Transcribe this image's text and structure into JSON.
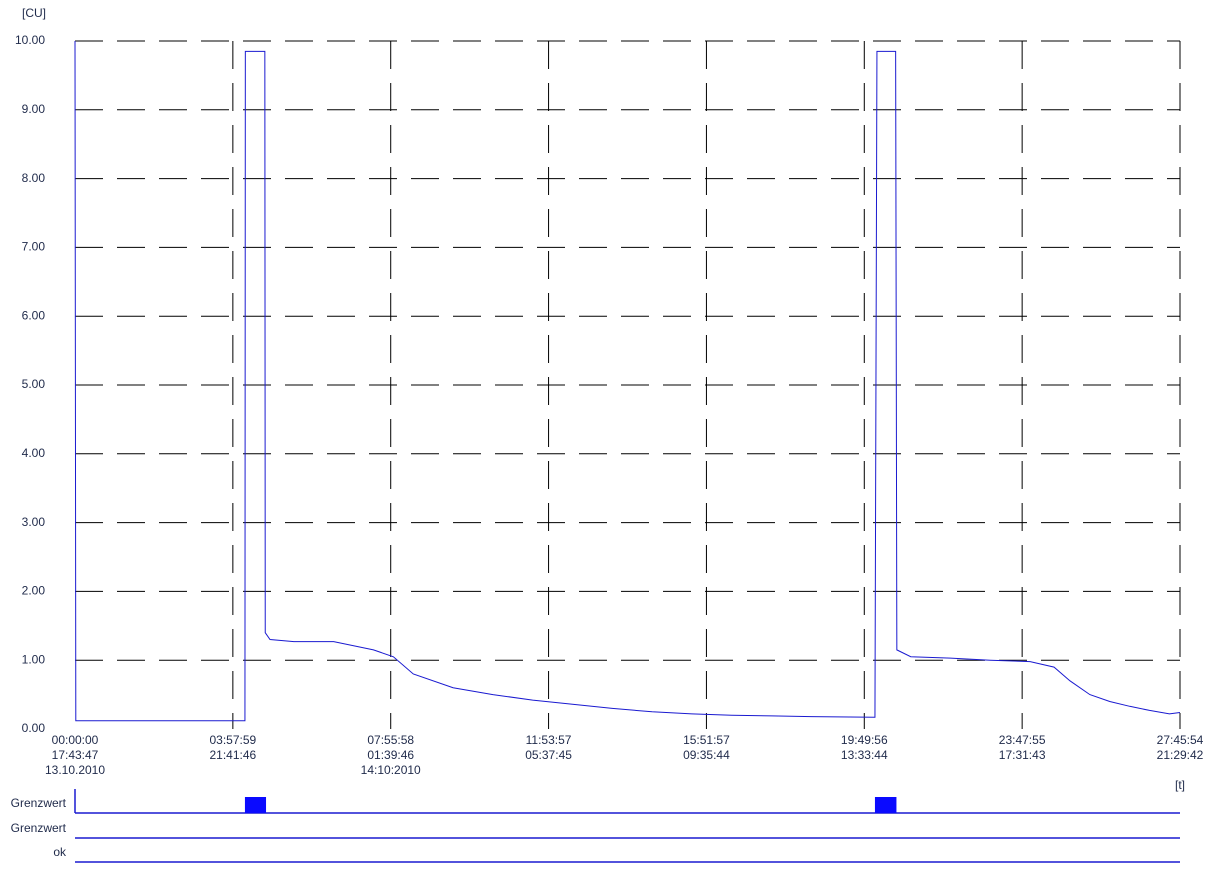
{
  "chart_data": {
    "type": "line",
    "y_unit_label": "[CU]",
    "x_unit_label": "[t]",
    "ylim": [
      0,
      10
    ],
    "yticks": [
      {
        "value": 0,
        "label": "0.00"
      },
      {
        "value": 1,
        "label": "1.00"
      },
      {
        "value": 2,
        "label": "2.00"
      },
      {
        "value": 3,
        "label": "3.00"
      },
      {
        "value": 4,
        "label": "4.00"
      },
      {
        "value": 5,
        "label": "5.00"
      },
      {
        "value": 6,
        "label": "6.00"
      },
      {
        "value": 7,
        "label": "7.00"
      },
      {
        "value": 8,
        "label": "8.00"
      },
      {
        "value": 9,
        "label": "9.00"
      },
      {
        "value": 10,
        "label": "10.00"
      }
    ],
    "xlim": [
      0,
      27.765
    ],
    "xticks": [
      {
        "value": 0,
        "label": "00:00:00"
      },
      {
        "value": 3.9664,
        "label": "03:57:59"
      },
      {
        "value": 7.9328,
        "label": "07:55:58"
      },
      {
        "value": 11.8992,
        "label": "11:53:57"
      },
      {
        "value": 15.8658,
        "label": "15:51:57"
      },
      {
        "value": 19.8322,
        "label": "19:49:56"
      },
      {
        "value": 23.7986,
        "label": "23:47:55"
      },
      {
        "value": 27.765,
        "label": "27:45:54"
      }
    ],
    "xtick_clock": [
      "17:43:47",
      "21:41:46",
      "01:39:46",
      "05:37:45",
      "09:35:44",
      "13:33:44",
      "17:31:43",
      "21:29:42"
    ],
    "xtick_dates": [
      "13.10.2010",
      null,
      "14:10:2010",
      null,
      null,
      null,
      null,
      null
    ],
    "grid": true,
    "x": [
      0,
      0.02,
      4.27,
      4.28,
      4.77,
      4.78,
      4.9,
      5.5,
      6.5,
      7.5,
      8.0,
      8.5,
      9.5,
      10.5,
      11.5,
      12.5,
      13.5,
      14.5,
      15.5,
      16.5,
      17.5,
      18.5,
      20.1,
      20.15,
      20.62,
      20.65,
      21,
      22,
      23,
      24,
      24.6,
      25,
      25.5,
      26,
      26.5,
      27,
      27.5,
      27.765
    ],
    "series": [
      {
        "color": "#1a1ad0",
        "values": [
          10,
          0.12,
          0.12,
          9.85,
          9.85,
          1.4,
          1.3,
          1.27,
          1.27,
          1.15,
          1.05,
          0.8,
          0.6,
          0.5,
          0.42,
          0.36,
          0.3,
          0.25,
          0.22,
          0.2,
          0.19,
          0.18,
          0.17,
          9.85,
          9.85,
          1.15,
          1.05,
          1.03,
          1.0,
          0.98,
          0.9,
          0.7,
          0.5,
          0.4,
          0.33,
          0.27,
          0.22,
          0.24
        ]
      }
    ],
    "status_rows": [
      {
        "label": "Grenzwert",
        "intervals": [
          [
            4.27,
            4.8
          ],
          [
            20.1,
            20.64
          ]
        ]
      },
      {
        "label": "Grenzwert",
        "intervals": []
      },
      {
        "label": "ok",
        "intervals": []
      }
    ]
  }
}
